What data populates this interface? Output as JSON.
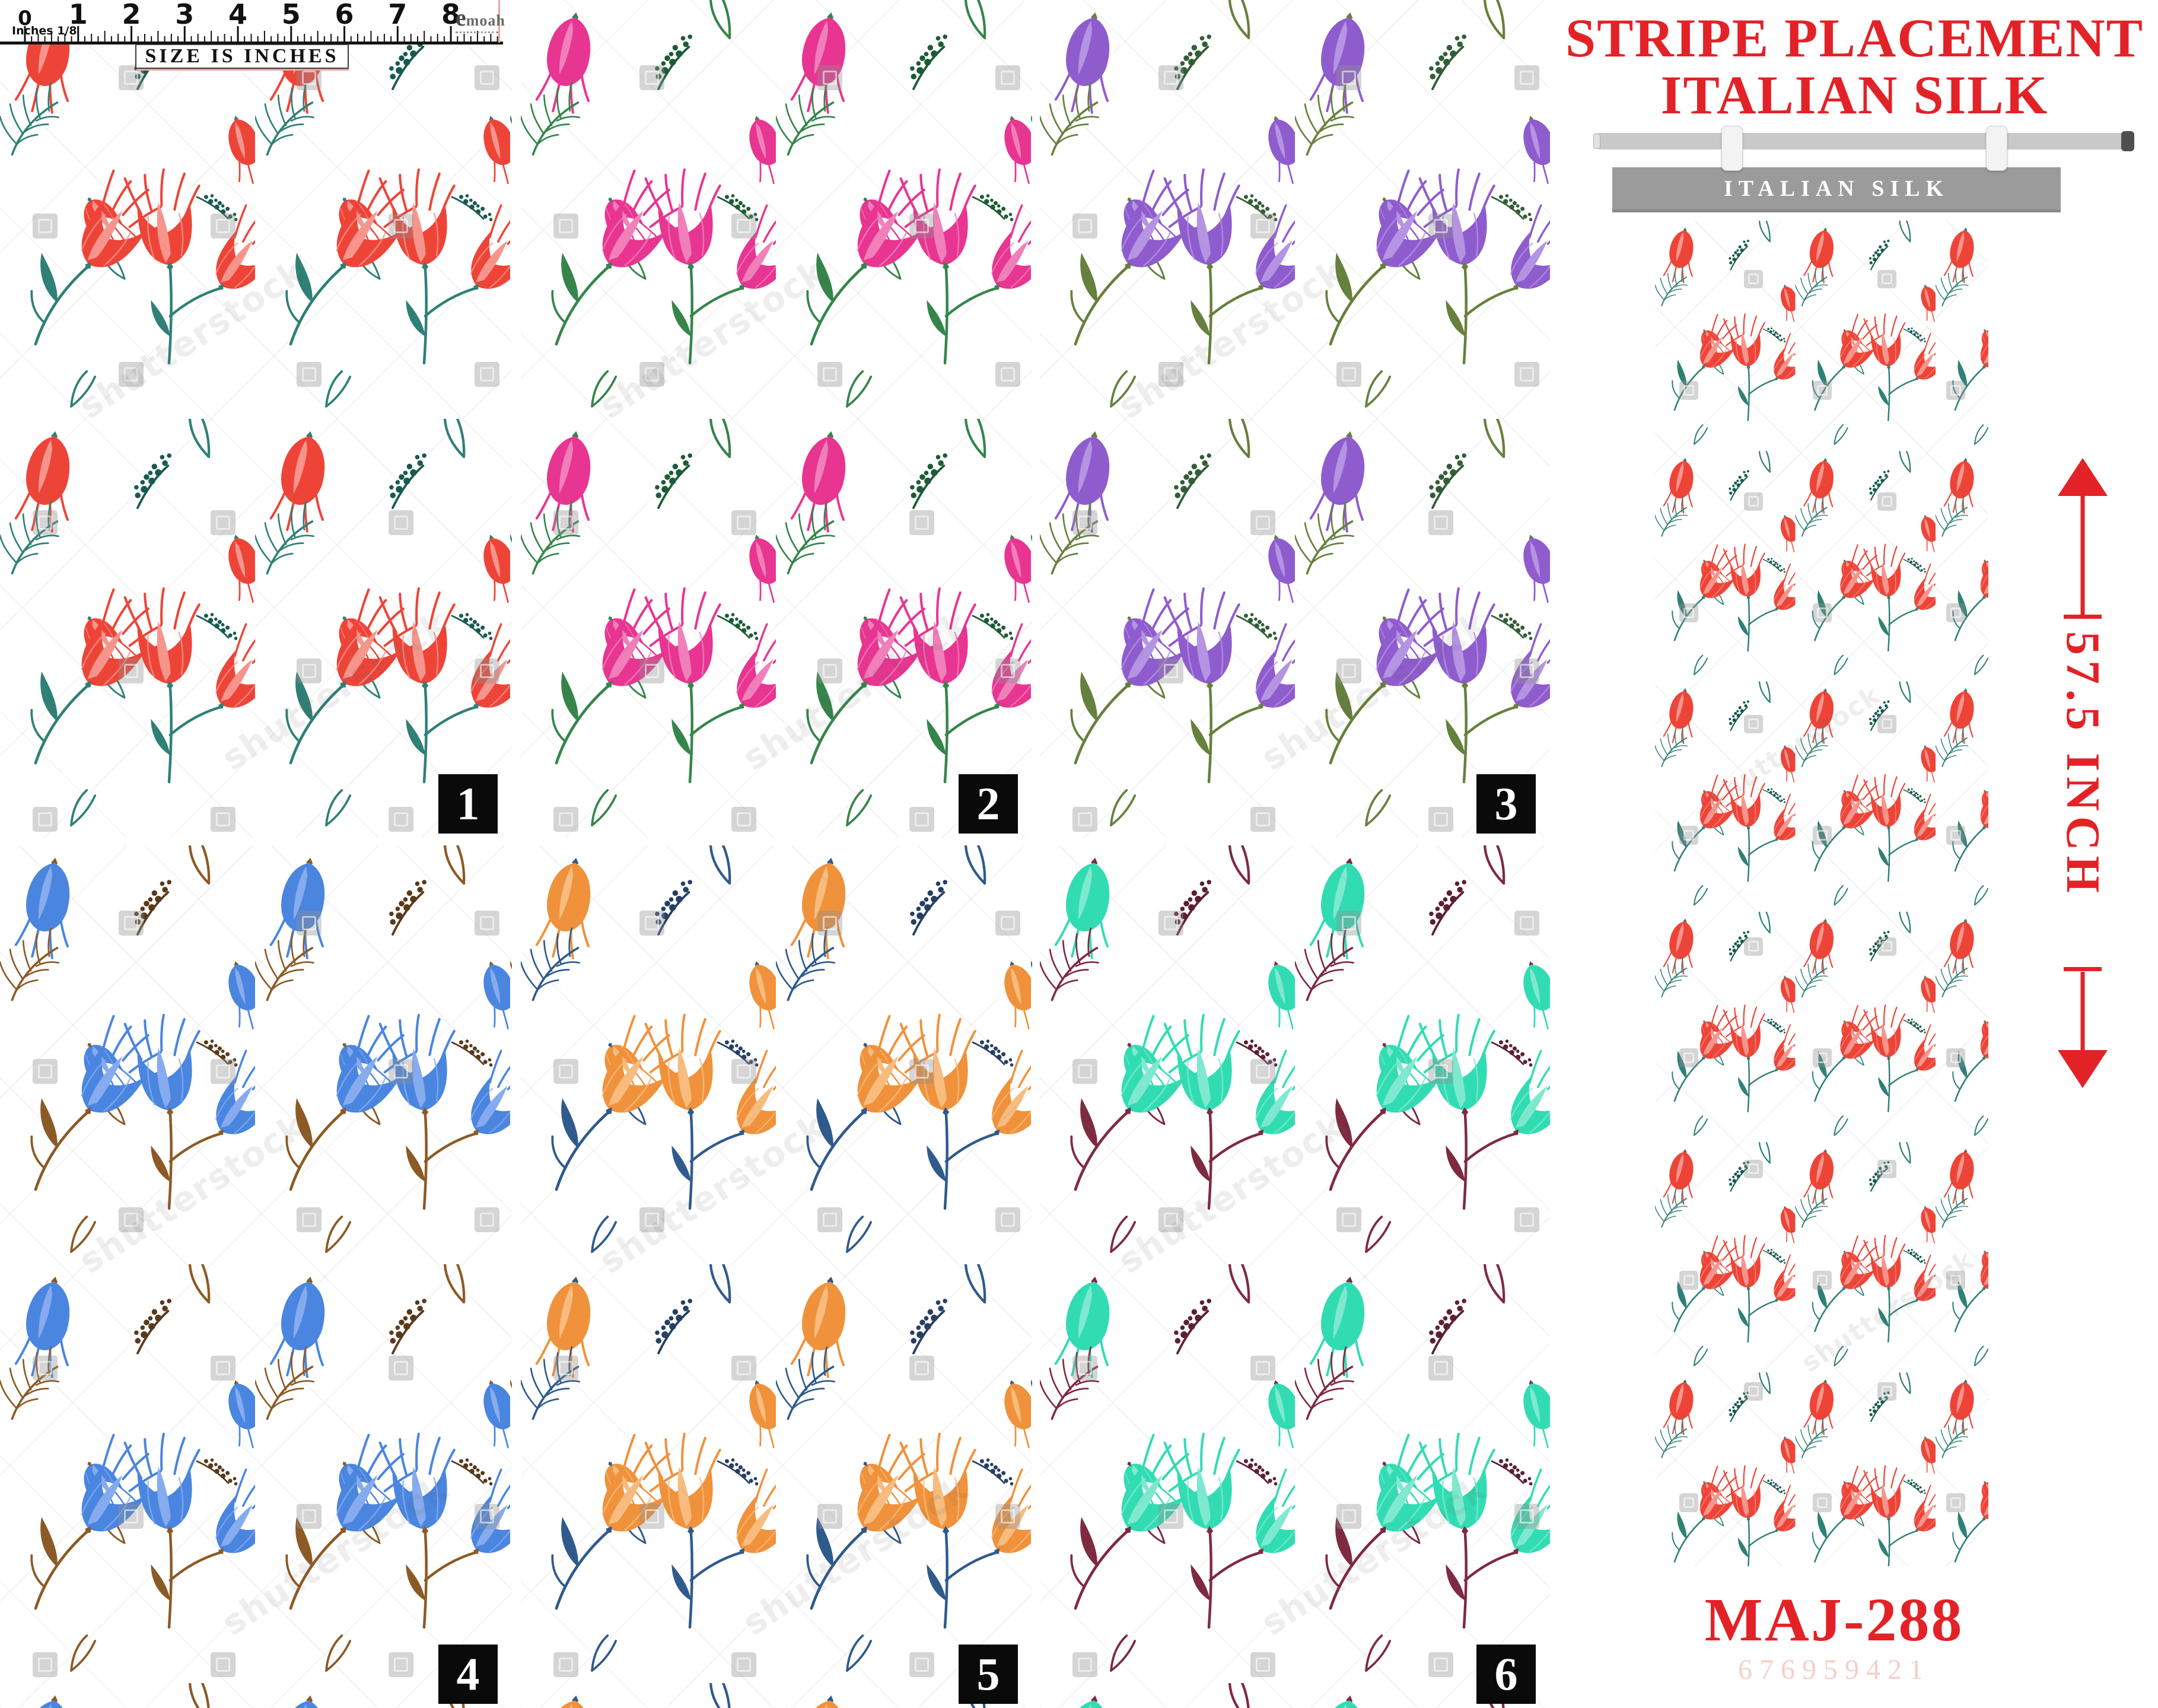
{
  "ruler": {
    "numbers": [
      "0",
      "1",
      "2",
      "3",
      "4",
      "5",
      "6",
      "7",
      "8"
    ],
    "unit_label": "Inches 1/8",
    "caption": "SIZE IS INCHES",
    "brand": "emoah"
  },
  "swatches": [
    {
      "number": "1",
      "flower": "#ee4438",
      "flower_light": "#f7958c",
      "stem": "#2f8076",
      "sprig": "#175a50"
    },
    {
      "number": "2",
      "flower": "#e83591",
      "flower_light": "#f07fba",
      "stem": "#35854a",
      "sprig": "#1b5c35"
    },
    {
      "number": "3",
      "flower": "#8f5cce",
      "flower_light": "#b494e3",
      "stem": "#66803d",
      "sprig": "#315e36"
    },
    {
      "number": "4",
      "flower": "#4a85e0",
      "flower_light": "#86abee",
      "stem": "#8c5a25",
      "sprig": "#59391a"
    },
    {
      "number": "5",
      "flower": "#f0923b",
      "flower_light": "#f7bc7e",
      "stem": "#2f5a8c",
      "sprig": "#263f63"
    },
    {
      "number": "6",
      "flower": "#32dcb3",
      "flower_light": "#7fe9d0",
      "stem": "#7e2a40",
      "sprig": "#5c1f31"
    }
  ],
  "panel": {
    "title_line1": "STRIPE PLACEMENT",
    "title_line2": "ITALIAN SILK",
    "banner_label": "ITALIAN SILK",
    "measure_label": "57.5  INCH",
    "code": "MAJ-288",
    "code_sub": "676959421",
    "accent": "#e32227",
    "banner_gray": "#9b9b9b"
  },
  "watermark_text": "shutterstock"
}
